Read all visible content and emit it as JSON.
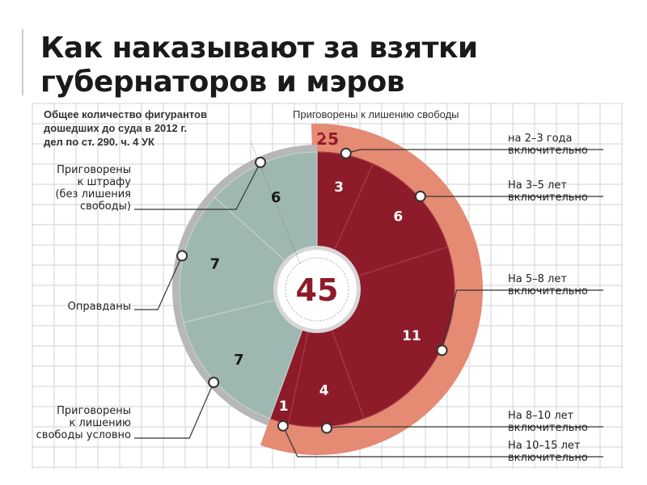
{
  "title_line1": "Как  наказывают за взятки",
  "title_line2": "губернаторов и мэров",
  "subtitle_lines": [
    "Общее количество фигурантов",
    "дошедших до суда в 2012 г.",
    "дел по ст. 290. ч. 4 УК"
  ],
  "colors": {
    "dark_red": "#8e1b2a",
    "salmon": "#e58a73",
    "gray_green": "#9fb7b1",
    "rim": "#b7b7b7",
    "grid": "#cfd3d6"
  },
  "chart_data": {
    "type": "pie",
    "total": 45,
    "outer_ring": {
      "name": "Приговорены к лишению свободы",
      "value": 25
    },
    "slices": [
      {
        "label": "на 2–3 года\nвключительно",
        "value": 3,
        "group": "prison"
      },
      {
        "label": "На 3–5 лет\nвключительно",
        "value": 6,
        "group": "prison"
      },
      {
        "label": "На 5–8 лет\nвключительно",
        "value": 11,
        "group": "prison"
      },
      {
        "label": "На 8–10 лет\nвключительно",
        "value": 4,
        "group": "prison"
      },
      {
        "label": "На 10–15 лет\nвключительно",
        "value": 1,
        "group": "prison"
      },
      {
        "label": "Приговорены\nк лишению\nсвободы условно",
        "value": 7,
        "group": "other"
      },
      {
        "label": "Оправданы",
        "value": 7,
        "group": "other"
      },
      {
        "label": "Приговорены\nк штрафу\n(без лишения\nсвободы)",
        "value": 6,
        "group": "other"
      }
    ]
  }
}
